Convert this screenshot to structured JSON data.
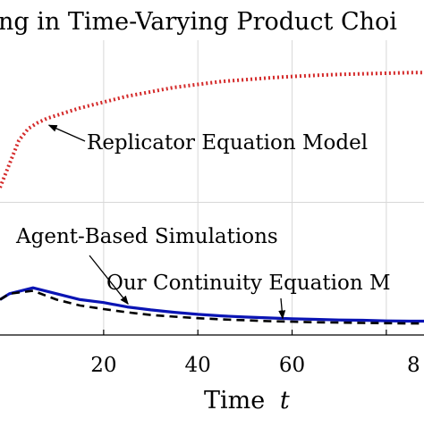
{
  "chart_data": {
    "type": "line",
    "title": "ng in Time-Varying Product Choi",
    "xlabel": "Time t",
    "xlabel_parts": {
      "text": "Time",
      "var": "t"
    },
    "ylabel": "",
    "xlim": [
      -2,
      88
    ],
    "ylim": [
      0,
      1
    ],
    "x_ticks": [
      20,
      40,
      60
    ],
    "x_tick_partial": "8",
    "grid": true,
    "series": [
      {
        "name": "Replicator Equation Model",
        "style": "dotted",
        "color": "#d42a2a",
        "x": [
          -2,
          2,
          4,
          6,
          8,
          10,
          12,
          15,
          20,
          25,
          30,
          35,
          40,
          45,
          50,
          55,
          60,
          65,
          70,
          75,
          80,
          85,
          88
        ],
        "y": [
          0.5,
          0.66,
          0.7,
          0.72,
          0.735,
          0.745,
          0.755,
          0.77,
          0.79,
          0.81,
          0.825,
          0.84,
          0.85,
          0.86,
          0.866,
          0.872,
          0.877,
          0.881,
          0.884,
          0.886,
          0.888,
          0.89,
          0.89
        ]
      },
      {
        "name": "Agent-Based Simulations",
        "style": "solid",
        "color": "#0a14b4",
        "x": [
          -2,
          0,
          5,
          10,
          15,
          20,
          25,
          30,
          35,
          40,
          45,
          50,
          55,
          60,
          65,
          70,
          75,
          80,
          85,
          88
        ],
        "y": [
          0.12,
          0.14,
          0.16,
          0.14,
          0.12,
          0.11,
          0.095,
          0.085,
          0.077,
          0.07,
          0.065,
          0.061,
          0.058,
          0.055,
          0.053,
          0.051,
          0.05,
          0.048,
          0.047,
          0.047
        ]
      },
      {
        "name": "Our Continuity Equation M",
        "style": "dashed",
        "color": "#000000",
        "x": [
          -2,
          0,
          5,
          10,
          15,
          20,
          25,
          30,
          35,
          40,
          45,
          50,
          55,
          60,
          65,
          70,
          75,
          80,
          85,
          88
        ],
        "y": [
          0.12,
          0.14,
          0.15,
          0.12,
          0.1,
          0.088,
          0.077,
          0.068,
          0.062,
          0.057,
          0.053,
          0.05,
          0.047,
          0.045,
          0.043,
          0.042,
          0.041,
          0.04,
          0.039,
          0.039
        ]
      }
    ],
    "annotations": [
      {
        "text": "Replicator Equation Model",
        "target": "Replicator Equation Model",
        "point_x": 8,
        "point_y": 0.73
      },
      {
        "text": "Agent-Based Simulations",
        "target": "Agent-Based Simulations",
        "point_x": 25,
        "point_y": 0.09
      },
      {
        "text": "Our Continuity Equation M",
        "target": "Our Continuity Equation M",
        "point_x": 58,
        "point_y": 0.044
      }
    ]
  }
}
